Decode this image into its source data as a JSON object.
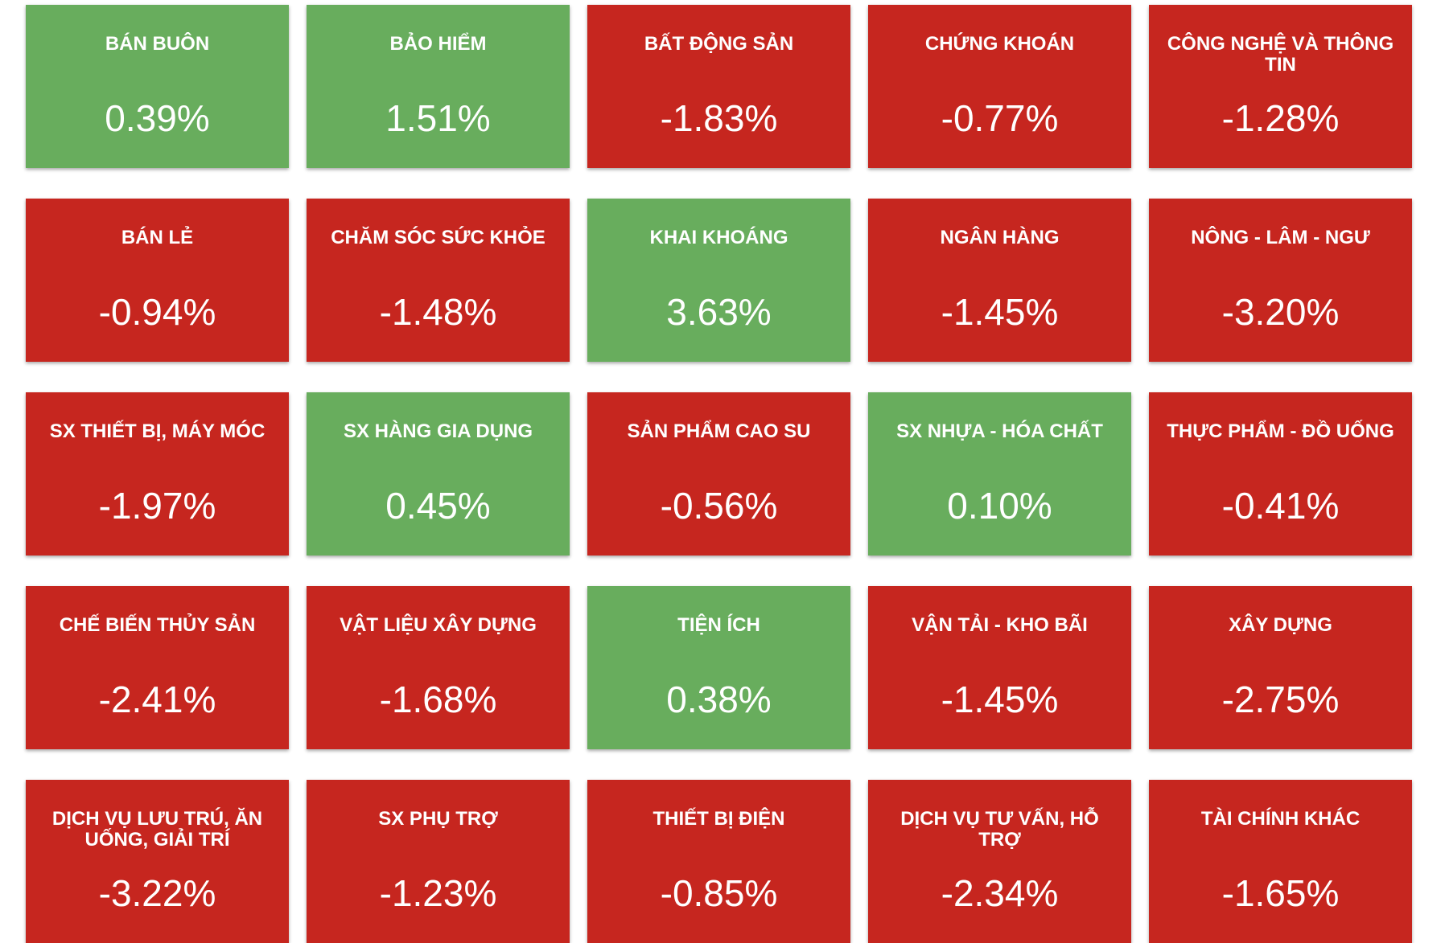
{
  "colors": {
    "up": "#68ad5d",
    "down": "#c6261f",
    "text": "#ffffff"
  },
  "sectors": [
    {
      "label": "BÁN BUÔN",
      "value": "0.39%",
      "status": "up"
    },
    {
      "label": "BẢO HIỂM",
      "value": "1.51%",
      "status": "up"
    },
    {
      "label": "BẤT ĐỘNG SẢN",
      "value": "-1.83%",
      "status": "down"
    },
    {
      "label": "CHỨNG KHOÁN",
      "value": "-0.77%",
      "status": "down"
    },
    {
      "label": "CÔNG NGHỆ VÀ THÔNG TIN",
      "value": "-1.28%",
      "status": "down"
    },
    {
      "label": "BÁN LẺ",
      "value": "-0.94%",
      "status": "down"
    },
    {
      "label": "CHĂM SÓC SỨC KHỎE",
      "value": "-1.48%",
      "status": "down"
    },
    {
      "label": "KHAI KHOÁNG",
      "value": "3.63%",
      "status": "up"
    },
    {
      "label": "NGÂN HÀNG",
      "value": "-1.45%",
      "status": "down"
    },
    {
      "label": "NÔNG - LÂM - NGƯ",
      "value": "-3.20%",
      "status": "down"
    },
    {
      "label": "SX THIẾT BỊ, MÁY MÓC",
      "value": "-1.97%",
      "status": "down"
    },
    {
      "label": "SX HÀNG GIA DỤNG",
      "value": "0.45%",
      "status": "up"
    },
    {
      "label": "SẢN PHẨM CAO SU",
      "value": "-0.56%",
      "status": "down"
    },
    {
      "label": "SX NHỰA - HÓA CHẤT",
      "value": "0.10%",
      "status": "up"
    },
    {
      "label": "THỰC PHẨM - ĐỒ UỐNG",
      "value": "-0.41%",
      "status": "down"
    },
    {
      "label": "CHẾ BIẾN THỦY SẢN",
      "value": "-2.41%",
      "status": "down"
    },
    {
      "label": "VẬT LIỆU XÂY DỰNG",
      "value": "-1.68%",
      "status": "down"
    },
    {
      "label": "TIỆN ÍCH",
      "value": "0.38%",
      "status": "up"
    },
    {
      "label": "VẬN TẢI - KHO BÃI",
      "value": "-1.45%",
      "status": "down"
    },
    {
      "label": "XÂY DỰNG",
      "value": "-2.75%",
      "status": "down"
    },
    {
      "label": "DỊCH VỤ LƯU TRÚ, ĂN UỐNG, GIẢI TRÍ",
      "value": "-3.22%",
      "status": "down"
    },
    {
      "label": "SX PHỤ TRỢ",
      "value": "-1.23%",
      "status": "down"
    },
    {
      "label": "THIẾT BỊ ĐIỆN",
      "value": "-0.85%",
      "status": "down"
    },
    {
      "label": "DỊCH VỤ TƯ VẤN, HỖ TRỢ",
      "value": "-2.34%",
      "status": "down"
    },
    {
      "label": "TÀI CHÍNH KHÁC",
      "value": "-1.65%",
      "status": "down"
    }
  ]
}
